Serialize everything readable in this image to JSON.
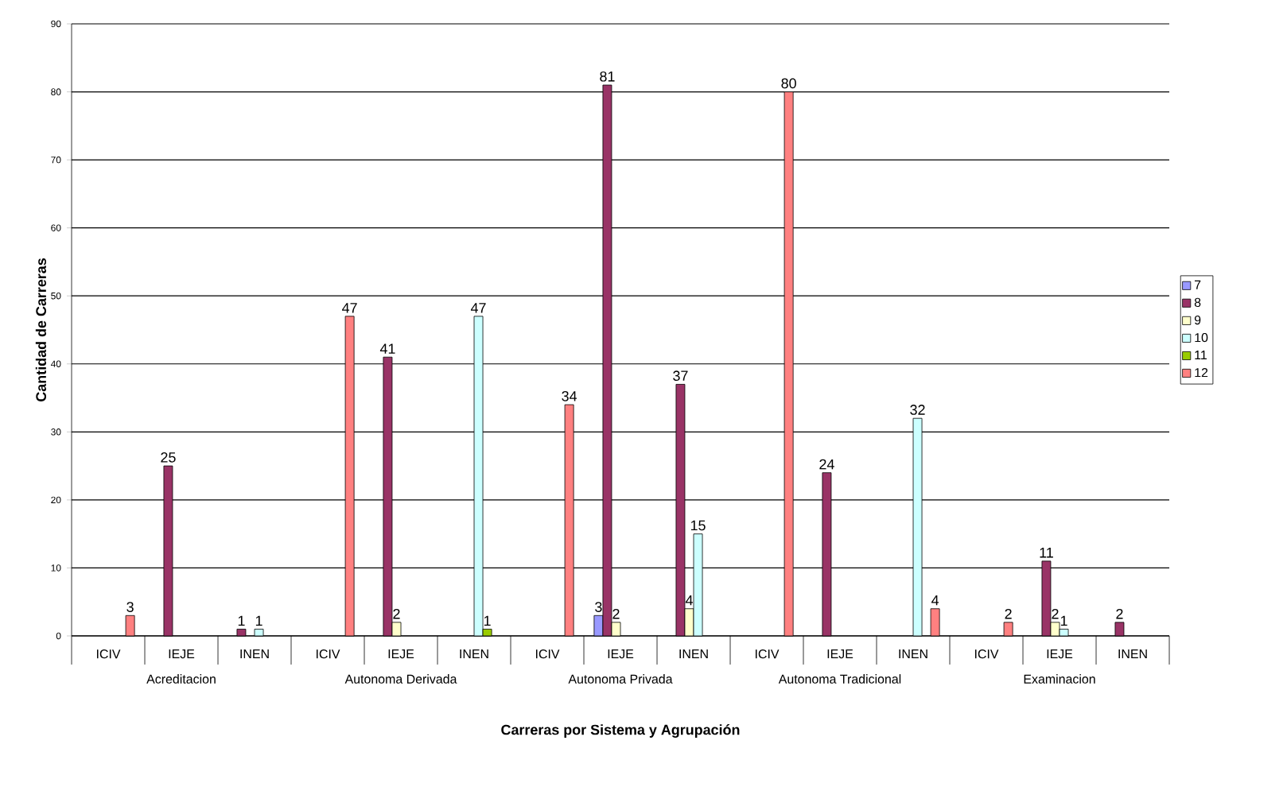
{
  "chart_data": {
    "type": "bar",
    "xlabel": "Carreras por Sistema y Agrupación",
    "ylabel": "Cantidad de Carreras",
    "categories": [
      "ICIV",
      "IEJE",
      "INEN",
      "ICIV",
      "IEJE",
      "INEN",
      "ICIV",
      "IEJE",
      "INEN",
      "ICIV",
      "IEJE",
      "INEN",
      "ICIV",
      "IEJE",
      "INEN"
    ],
    "series": [
      {
        "name": "7",
        "color": "#9999ff",
        "values": [
          null,
          null,
          null,
          null,
          null,
          null,
          null,
          3,
          null,
          null,
          null,
          null,
          null,
          null,
          null
        ]
      },
      {
        "name": "8",
        "color": "#993366",
        "values": [
          null,
          25,
          1,
          null,
          41,
          null,
          null,
          81,
          37,
          null,
          24,
          null,
          null,
          11,
          2
        ]
      },
      {
        "name": "9",
        "color": "#ffffcc",
        "values": [
          null,
          null,
          null,
          null,
          2,
          null,
          null,
          2,
          4,
          null,
          null,
          null,
          null,
          2,
          null
        ]
      },
      {
        "name": "10",
        "color": "#ccffff",
        "values": [
          null,
          null,
          1,
          null,
          null,
          47,
          null,
          null,
          15,
          null,
          null,
          32,
          null,
          1,
          null
        ]
      },
      {
        "name": "11",
        "color": "#99cc00",
        "values": [
          null,
          null,
          null,
          null,
          null,
          1,
          null,
          null,
          null,
          null,
          null,
          null,
          null,
          null,
          null
        ]
      },
      {
        "name": "12",
        "color": "#ff8080",
        "values": [
          3,
          null,
          null,
          47,
          null,
          null,
          34,
          null,
          null,
          80,
          null,
          4,
          2,
          null,
          null
        ]
      }
    ],
    "annotations": [
      "Acreditacion",
      "Autonoma Derivada",
      "Autonoma Privada",
      "Autonoma Tradicional",
      "Examinacion"
    ],
    "ylim": [
      0,
      90
    ],
    "yticks": [
      0,
      10,
      20,
      30,
      40,
      50,
      60,
      70,
      80,
      90
    ],
    "grid": "y",
    "legend": "right",
    "data_labels": true
  }
}
